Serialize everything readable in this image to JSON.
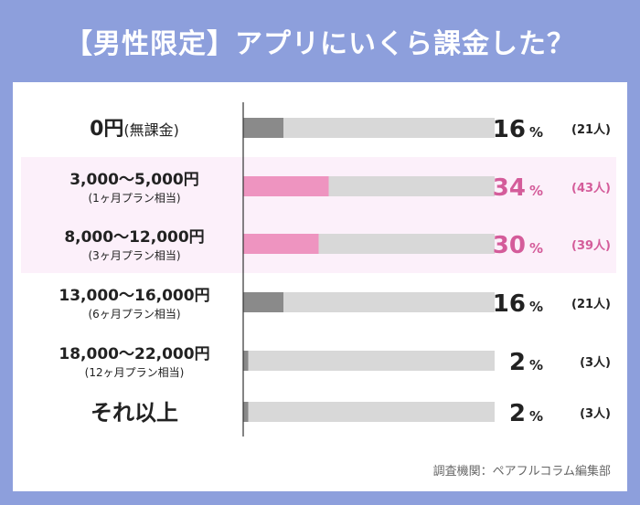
{
  "header": {
    "title": "【男性限定】アプリにいくら課金した？"
  },
  "chart_data": {
    "type": "bar",
    "orientation": "horizontal",
    "title": "【男性限定】アプリにいくら課金した？",
    "categories": [
      {
        "label": "0円",
        "sub": "(無課金)",
        "inline_sub": true
      },
      {
        "label": "3,000～5,000円",
        "sub": "(1ヶ月プラン相当)",
        "inline_sub": false
      },
      {
        "label": "8,000～12,000円",
        "sub": "(3ヶ月プラン相当)",
        "inline_sub": false
      },
      {
        "label": "13,000～16,000円",
        "sub": "(6ヶ月プラン相当)",
        "inline_sub": false
      },
      {
        "label": "18,000～22,000円",
        "sub": "(12ヶ月プラン相当)",
        "inline_sub": false
      },
      {
        "label": "それ以上",
        "sub": "",
        "inline_sub": false
      }
    ],
    "values": [
      16,
      34,
      30,
      16,
      2,
      2
    ],
    "counts": [
      21,
      43,
      39,
      21,
      3,
      3
    ],
    "percent_unit": "%",
    "count_unit": "人",
    "xlim": [
      0,
      100
    ],
    "highlighted": [
      1,
      2
    ],
    "colors": {
      "bar_default": "#8a8a8a",
      "bar_highlight": "#ee94c0",
      "track": "#d8d8d8",
      "row_highlight": "#fcf0fa",
      "text_default": "#222222",
      "text_highlight": "#d45c9a",
      "axis": "#333333"
    },
    "source": "調査機関：ペアフルコラム編集部"
  }
}
